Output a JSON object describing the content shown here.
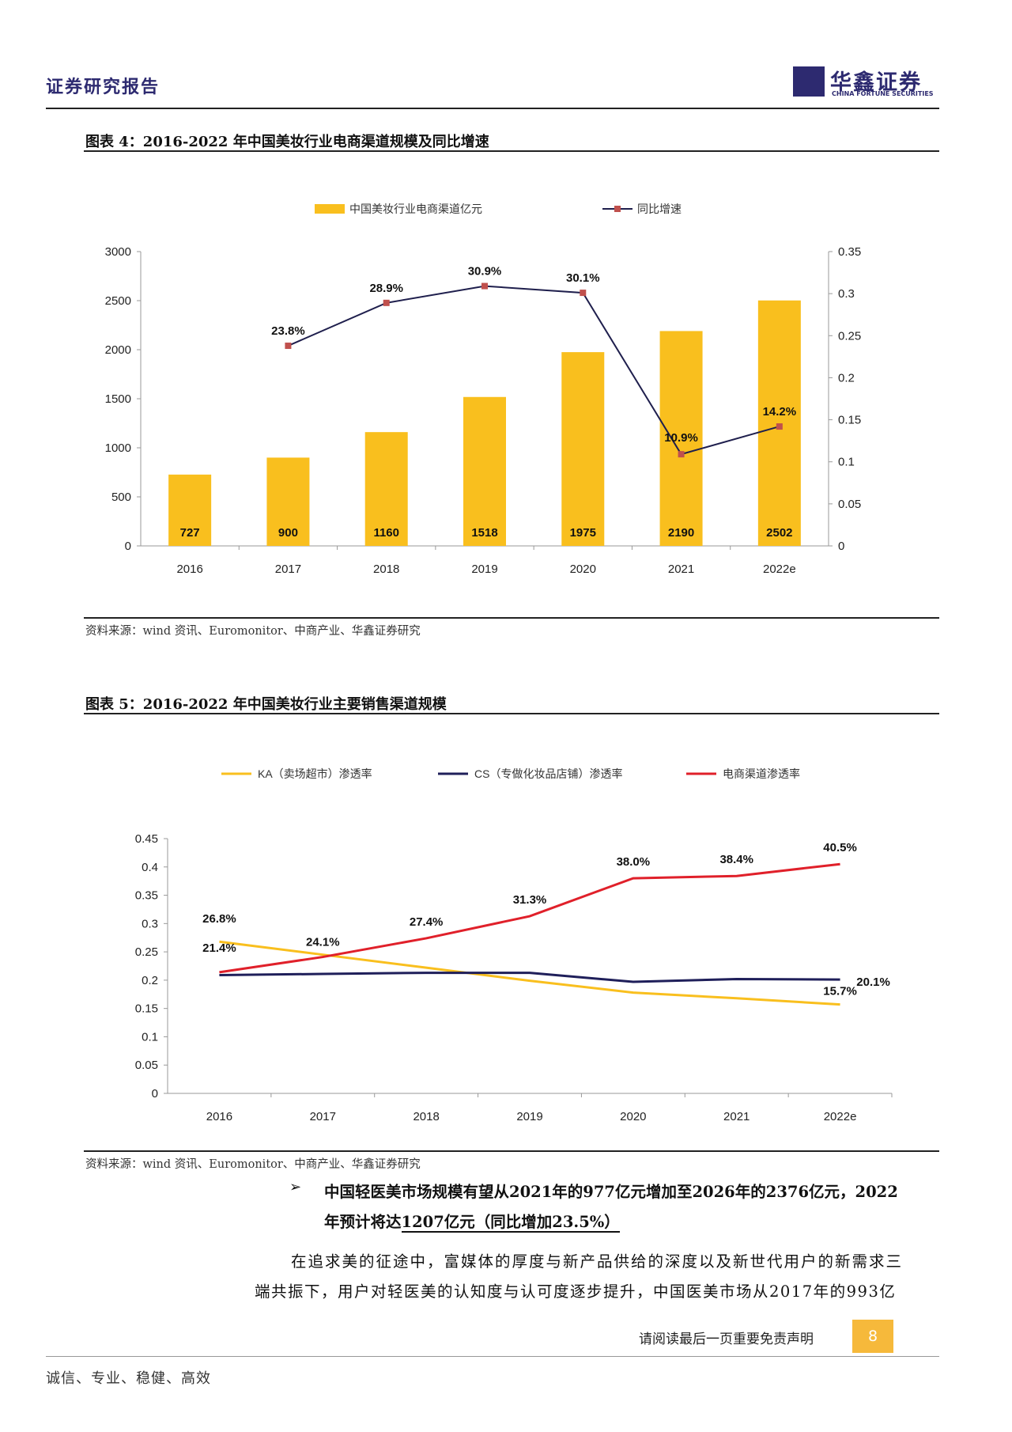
{
  "header": {
    "title": "证券研究报告",
    "logo_cn": "华鑫证券",
    "logo_en": "CHINA FORTUNE SECURITIES"
  },
  "figure4": {
    "title": "图表 4：2016-2022 年中国美妆行业电商渠道规模及同比增速",
    "source": "资料来源：wind 资讯、Euromonitor、中商产业、华鑫证券研究",
    "chart_data": {
      "type": "bar",
      "categories": [
        "2016",
        "2017",
        "2018",
        "2019",
        "2020",
        "2021",
        "2022e"
      ],
      "series": [
        {
          "name": "中国美妆行业电商渠道亿元",
          "type": "bar",
          "axis": "left",
          "color": "#f9bf1e",
          "values": [
            727,
            900,
            1160,
            1518,
            1975,
            2190,
            2502
          ],
          "labels": [
            "727",
            "900",
            "1160",
            "1518",
            "1975",
            "2190",
            "2502"
          ]
        },
        {
          "name": "同比增速",
          "type": "line",
          "axis": "right",
          "color": "#1f1f4d",
          "marker_color": "#c0504d",
          "values": [
            null,
            0.238,
            0.289,
            0.309,
            0.301,
            0.109,
            0.142
          ],
          "labels": [
            null,
            "23.8%",
            "28.9%",
            "30.9%",
            "30.1%",
            "10.9%",
            "14.2%"
          ]
        }
      ],
      "ylim_left": [
        0,
        3000
      ],
      "yticks_left": [
        "0",
        "500",
        "1000",
        "1500",
        "2000",
        "2500",
        "3000"
      ],
      "ylim_right": [
        0,
        0.35
      ],
      "yticks_right": [
        "0",
        "0.05",
        "0.1",
        "0.15",
        "0.2",
        "0.25",
        "0.3",
        "0.35"
      ],
      "legend": "top-center",
      "grid": false
    }
  },
  "figure5": {
    "title": "图表 5：2016-2022 年中国美妆行业主要销售渠道规模",
    "source": "资料来源：wind 资讯、Euromonitor、中商产业、华鑫证券研究",
    "chart_data": {
      "type": "line",
      "categories": [
        "2016",
        "2017",
        "2018",
        "2019",
        "2020",
        "2021",
        "2022e"
      ],
      "series": [
        {
          "name": "KA（卖场超市）渗透率",
          "color": "#f9bf1e",
          "values": [
            0.268,
            0.245,
            0.222,
            0.199,
            0.178,
            0.168,
            0.157
          ],
          "labels": [
            "26.8%",
            null,
            null,
            null,
            null,
            null,
            "15.7%"
          ]
        },
        {
          "name": "CS（专做化妆品店铺）渗透率",
          "color": "#1f1f5a",
          "values": [
            0.209,
            0.211,
            0.213,
            0.213,
            0.197,
            0.202,
            0.201
          ],
          "labels": [
            null,
            null,
            null,
            null,
            null,
            null,
            "20.1%"
          ]
        },
        {
          "name": "电商渠道渗透率",
          "color": "#e0202a",
          "values": [
            0.214,
            0.241,
            0.274,
            0.313,
            0.38,
            0.384,
            0.405
          ],
          "labels": [
            "21.4%",
            "24.1%",
            "27.4%",
            "31.3%",
            "38.0%",
            "38.4%",
            "40.5%"
          ]
        }
      ],
      "ylim": [
        0,
        0.45
      ],
      "yticks": [
        "0",
        "0.05",
        "0.1",
        "0.15",
        "0.2",
        "0.25",
        "0.3",
        "0.35",
        "0.4",
        "0.45"
      ],
      "legend": "top",
      "grid": false
    }
  },
  "text": {
    "bullet_mark": "➢",
    "bullet_line1": "中国轻医美市场规模有望从2021年的977亿元增加至2026年的2376亿元，2022",
    "bullet_line2_a": "年预计将达",
    "bullet_line2_b": "1207亿元（同比增加23.5%）",
    "body_line1": "在追求美的征途中，富媒体的厚度与新产品供给的深度以及新世代用户的新需求三",
    "body_line2": "端共振下，用户对轻医美的认知度与认可度逐步提升，中国医美市场从2017年的993亿"
  },
  "footer": {
    "disclaimer": "请阅读最后一页重要免责声明",
    "page": "8",
    "motto": "诚信、专业、稳健、高效"
  }
}
